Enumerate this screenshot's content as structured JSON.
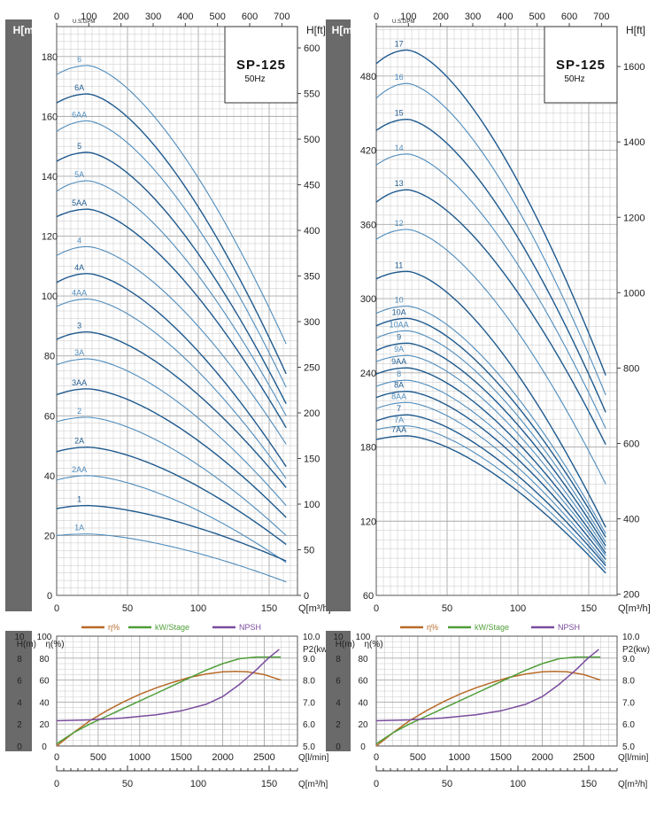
{
  "page_title": "SP-125 50Hz pump performance curves",
  "colors": {
    "curve_dark": "#1f5a8e",
    "curve_light": "#4f8cbc",
    "efficiency": "#b86a28",
    "power": "#4f9e38",
    "npsh": "#7a4c9e",
    "grid": "#c6c6c6",
    "side_band": "#6a6a6a"
  },
  "chart_data": [
    {
      "type": "line",
      "id": "head-left",
      "title": "SP-125",
      "subtitle": "50Hz",
      "xlabel": "Q[m³/h]",
      "ylabel": "H[m]",
      "y2label": "H[ft]",
      "topaxis_label": "U.S.GPM",
      "xlim": [
        0,
        170
      ],
      "ylim": [
        0,
        190
      ],
      "xticks": [
        "0",
        "50",
        "100",
        "150"
      ],
      "yticks": [
        "0",
        "20",
        "40",
        "60",
        "80",
        "100",
        "120",
        "140",
        "160",
        "180"
      ],
      "ftticks": [
        "0",
        "50",
        "100",
        "150",
        "200",
        "250",
        "300",
        "350",
        "400",
        "450",
        "500",
        "550",
        "600"
      ],
      "gpmticks": [
        "0",
        "100",
        "200",
        "300",
        "400",
        "500",
        "600",
        "700"
      ],
      "end_q": 162,
      "series": [
        {
          "name": "6",
          "shut": 174.0,
          "peak": 177.0,
          "end": 84.0,
          "tone": "light"
        },
        {
          "name": "6A",
          "shut": 164.5,
          "peak": 167.5,
          "end": 74.0,
          "tone": "dark"
        },
        {
          "name": "6AA",
          "shut": 155.0,
          "peak": 158.5,
          "end": 69.5,
          "tone": "light"
        },
        {
          "name": "5",
          "shut": 145.0,
          "peak": 148.0,
          "end": 64.0,
          "tone": "dark"
        },
        {
          "name": "5A",
          "shut": 135.0,
          "peak": 138.5,
          "end": 60.0,
          "tone": "light"
        },
        {
          "name": "5AA",
          "shut": 126.5,
          "peak": 129.0,
          "end": 56.0,
          "tone": "dark"
        },
        {
          "name": "4",
          "shut": 113.5,
          "peak": 116.5,
          "end": 50.5,
          "tone": "light"
        },
        {
          "name": "4A",
          "shut": 104.5,
          "peak": 107.5,
          "end": 43.0,
          "tone": "dark"
        },
        {
          "name": "4AA",
          "shut": 96.5,
          "peak": 99.0,
          "end": 39.0,
          "tone": "light"
        },
        {
          "name": "3",
          "shut": 85.5,
          "peak": 88.0,
          "end": 36.0,
          "tone": "dark"
        },
        {
          "name": "3A",
          "shut": 77.0,
          "peak": 79.0,
          "end": 30.0,
          "tone": "light"
        },
        {
          "name": "3AA",
          "shut": 67.0,
          "peak": 69.0,
          "end": 26.0,
          "tone": "dark"
        },
        {
          "name": "2",
          "shut": 58.0,
          "peak": 59.5,
          "end": 20.0,
          "tone": "light"
        },
        {
          "name": "2A",
          "shut": 48.0,
          "peak": 49.5,
          "end": 17.0,
          "tone": "dark"
        },
        {
          "name": "2AA",
          "shut": 38.5,
          "peak": 40.0,
          "end": 11.0,
          "tone": "light"
        },
        {
          "name": "1",
          "shut": 29.0,
          "peak": 30.0,
          "end": 11.5,
          "tone": "dark"
        },
        {
          "name": "1A",
          "shut": 20.0,
          "peak": 20.5,
          "end": 4.5,
          "tone": "light"
        }
      ]
    },
    {
      "type": "line",
      "id": "head-right",
      "title": "SP-125",
      "subtitle": "50Hz",
      "xlabel": "Q[m³/h]",
      "ylabel": "H[m]",
      "y2label": "H[ft]",
      "topaxis_label": "U.S.GPM",
      "xlim": [
        0,
        170
      ],
      "ylim": [
        60,
        520
      ],
      "xticks": [
        "0",
        "50",
        "100",
        "150"
      ],
      "yticks": [
        "60",
        "120",
        "180",
        "240",
        "300",
        "360",
        "420",
        "480"
      ],
      "ftticks": [
        "200",
        "400",
        "600",
        "800",
        "1000",
        "1200",
        "1400",
        "1600"
      ],
      "gpmticks": [
        "0",
        "100",
        "200",
        "300",
        "400",
        "500",
        "600",
        "700"
      ],
      "end_q": 162,
      "series": [
        {
          "name": "17",
          "shut": 490.0,
          "peak": 501.0,
          "end": 238.0,
          "tone": "dark"
        },
        {
          "name": "16",
          "shut": 462.0,
          "peak": 474.0,
          "end": 222.0,
          "tone": "light"
        },
        {
          "name": "15",
          "shut": 436.0,
          "peak": 445.0,
          "end": 208.0,
          "tone": "dark"
        },
        {
          "name": "14",
          "shut": 408.0,
          "peak": 417.0,
          "end": 195.0,
          "tone": "light"
        },
        {
          "name": "13",
          "shut": 378.0,
          "peak": 388.0,
          "end": 182.0,
          "tone": "dark"
        },
        {
          "name": "12",
          "shut": 348.0,
          "peak": 356.0,
          "end": 150.0,
          "tone": "light"
        },
        {
          "name": "11",
          "shut": 316.0,
          "peak": 322.0,
          "end": 115.0,
          "tone": "dark"
        },
        {
          "name": "10",
          "shut": 288.0,
          "peak": 294.0,
          "end": 110.0,
          "tone": "light"
        },
        {
          "name": "10A",
          "shut": 278.0,
          "peak": 284.0,
          "end": 107.0,
          "tone": "dark"
        },
        {
          "name": "10AA",
          "shut": 268.0,
          "peak": 274.0,
          "end": 103.0,
          "tone": "light"
        },
        {
          "name": "9",
          "shut": 258.0,
          "peak": 264.0,
          "end": 100.0,
          "tone": "dark"
        },
        {
          "name": "9A",
          "shut": 249.0,
          "peak": 254.0,
          "end": 97.0,
          "tone": "light"
        },
        {
          "name": "9AA",
          "shut": 239.0,
          "peak": 244.0,
          "end": 94.0,
          "tone": "dark"
        },
        {
          "name": "8",
          "shut": 229.0,
          "peak": 234.0,
          "end": 92.0,
          "tone": "light"
        },
        {
          "name": "8A",
          "shut": 220.0,
          "peak": 225.0,
          "end": 89.0,
          "tone": "dark"
        },
        {
          "name": "8AA",
          "shut": 211.0,
          "peak": 216.0,
          "end": 86.0,
          "tone": "light"
        },
        {
          "name": "7",
          "shut": 201.0,
          "peak": 206.0,
          "end": 84.0,
          "tone": "dark"
        },
        {
          "name": "7A",
          "shut": 194.0,
          "peak": 197.0,
          "end": 81.0,
          "tone": "light"
        },
        {
          "name": "7AA",
          "shut": 186.0,
          "peak": 189.0,
          "end": 78.0,
          "tone": "dark"
        }
      ]
    },
    {
      "type": "line",
      "id": "performance-left",
      "legend": [
        "η%",
        "kW/Stage",
        "NPSH"
      ],
      "xlabel": "Q[l/min]",
      "x2label": "Q[m³/h]",
      "ylabel_h": "H(m)",
      "ylabel_eta": "η(%)",
      "y2label": "P2(kw)",
      "xlim": [
        0,
        2900
      ],
      "xticks": [
        "0",
        "500",
        "1000",
        "1500",
        "2000",
        "2500"
      ],
      "x2ticks": [
        "0",
        "50",
        "100",
        "150"
      ],
      "hticks": [
        "0",
        "2",
        "4",
        "6",
        "8",
        "10"
      ],
      "etaticks": [
        "0",
        "20",
        "40",
        "60",
        "80",
        "100"
      ],
      "pticks": [
        "5.0",
        "6.0",
        "7.0",
        "8.0",
        "9.0",
        "10.0"
      ],
      "efficiency": [
        [
          0,
          0
        ],
        [
          200,
          12
        ],
        [
          400,
          23
        ],
        [
          600,
          32
        ],
        [
          800,
          40
        ],
        [
          1000,
          47
        ],
        [
          1200,
          53
        ],
        [
          1400,
          58
        ],
        [
          1600,
          62.5
        ],
        [
          1800,
          65.5
        ],
        [
          2000,
          67.5
        ],
        [
          2150,
          68
        ],
        [
          2300,
          67.5
        ],
        [
          2500,
          65
        ],
        [
          2700,
          60
        ]
      ],
      "power_kw": [
        [
          0,
          5.1
        ],
        [
          200,
          5.6
        ],
        [
          400,
          6.0
        ],
        [
          600,
          6.35
        ],
        [
          800,
          6.7
        ],
        [
          1000,
          7.05
        ],
        [
          1200,
          7.4
        ],
        [
          1400,
          7.75
        ],
        [
          1600,
          8.1
        ],
        [
          1800,
          8.45
        ],
        [
          2000,
          8.75
        ],
        [
          2200,
          8.97
        ],
        [
          2400,
          9.05
        ],
        [
          2700,
          9.05
        ]
      ],
      "npsh_m": [
        [
          0,
          2.3
        ],
        [
          400,
          2.38
        ],
        [
          800,
          2.55
        ],
        [
          1200,
          2.85
        ],
        [
          1500,
          3.2
        ],
        [
          1800,
          3.8
        ],
        [
          2000,
          4.5
        ],
        [
          2200,
          5.6
        ],
        [
          2400,
          6.9
        ],
        [
          2550,
          8.0
        ],
        [
          2680,
          8.8
        ]
      ]
    },
    {
      "type": "line",
      "id": "performance-right",
      "legend": [
        "η%",
        "kW/Stage",
        "NPSH"
      ],
      "xlabel": "Q[l/min]",
      "x2label": "Q[m³/h]",
      "ylabel_h": "H(m)",
      "ylabel_eta": "η(%)",
      "y2label": "P2(kw)",
      "xlim": [
        0,
        2900
      ],
      "xticks": [
        "0",
        "500",
        "1000",
        "1500",
        "2000",
        "2500"
      ],
      "x2ticks": [
        "0",
        "50",
        "100",
        "150"
      ],
      "hticks": [
        "0",
        "2",
        "4",
        "6",
        "8",
        "10"
      ],
      "etaticks": [
        "0",
        "20",
        "40",
        "60",
        "80",
        "100"
      ],
      "pticks": [
        "5.0",
        "6.0",
        "7.0",
        "8.0",
        "9.0",
        "10.0"
      ],
      "efficiency": [
        [
          0,
          0
        ],
        [
          200,
          12
        ],
        [
          400,
          23
        ],
        [
          600,
          32
        ],
        [
          800,
          40
        ],
        [
          1000,
          47
        ],
        [
          1200,
          53
        ],
        [
          1400,
          58
        ],
        [
          1600,
          62.5
        ],
        [
          1800,
          65.5
        ],
        [
          2000,
          67.5
        ],
        [
          2150,
          68
        ],
        [
          2300,
          67.5
        ],
        [
          2500,
          65
        ],
        [
          2700,
          60
        ]
      ],
      "power_kw": [
        [
          0,
          5.1
        ],
        [
          200,
          5.6
        ],
        [
          400,
          6.0
        ],
        [
          600,
          6.35
        ],
        [
          800,
          6.7
        ],
        [
          1000,
          7.05
        ],
        [
          1200,
          7.4
        ],
        [
          1400,
          7.75
        ],
        [
          1600,
          8.1
        ],
        [
          1800,
          8.45
        ],
        [
          2000,
          8.75
        ],
        [
          2200,
          8.97
        ],
        [
          2400,
          9.05
        ],
        [
          2700,
          9.05
        ]
      ],
      "npsh_m": [
        [
          0,
          2.3
        ],
        [
          400,
          2.38
        ],
        [
          800,
          2.55
        ],
        [
          1200,
          2.85
        ],
        [
          1500,
          3.2
        ],
        [
          1800,
          3.8
        ],
        [
          2000,
          4.5
        ],
        [
          2200,
          5.6
        ],
        [
          2400,
          6.9
        ],
        [
          2550,
          8.0
        ],
        [
          2680,
          8.8
        ]
      ]
    }
  ]
}
